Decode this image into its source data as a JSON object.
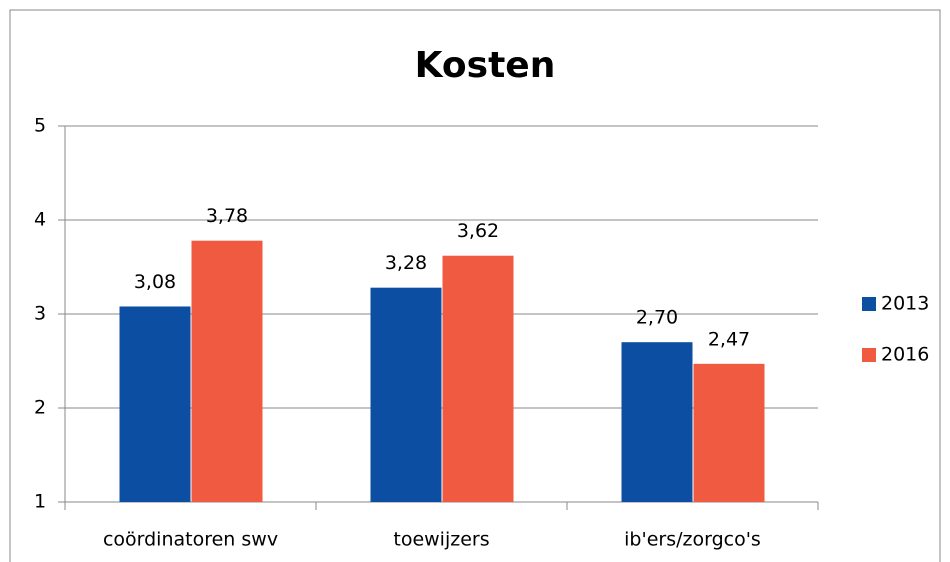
{
  "chart_data": {
    "type": "bar",
    "title": "Kosten",
    "categories": [
      "coördinatoren swv",
      "toewijzers",
      "ib'ers/zorgco's"
    ],
    "series": [
      {
        "name": "2013",
        "color": "#0b4ea2",
        "values": [
          3.08,
          3.28,
          2.7
        ],
        "value_labels": [
          "3,08",
          "3,28",
          "2,70"
        ]
      },
      {
        "name": "2016",
        "color": "#f05a40",
        "values": [
          3.78,
          3.62,
          2.47
        ],
        "value_labels": [
          "3,78",
          "3,62",
          "2,47"
        ]
      }
    ],
    "ylim": [
      1,
      5
    ],
    "yticks": [
      1,
      2,
      3,
      4,
      5
    ],
    "grid": true,
    "legend": "right"
  }
}
